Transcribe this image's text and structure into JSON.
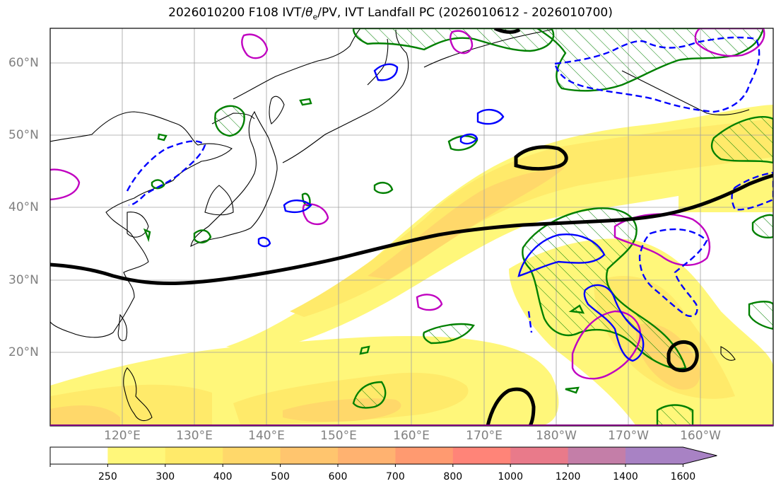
{
  "title": {
    "prefix": "2026010200 F108 IVT/",
    "theta": "θ",
    "theta_sub": "e",
    "suffix": "/PV, IVT Landfall PC (2026010612 - 2026010700)"
  },
  "lat_labels": [
    "60°N",
    "50°N",
    "40°N",
    "30°N",
    "20°N"
  ],
  "lon_labels": [
    "120°E",
    "130°E",
    "140°E",
    "150°E",
    "160°E",
    "170°E",
    "180°W",
    "170°W",
    "160°W"
  ],
  "colorbar": {
    "levels": [
      "250",
      "300",
      "400",
      "500",
      "600",
      "700",
      "800",
      "1000",
      "1200",
      "1400",
      "1600"
    ],
    "colors": [
      "#ffffff",
      "#fff77a",
      "#ffea6a",
      "#ffd86a",
      "#ffc56e",
      "#ffb270",
      "#ff9a70",
      "#ff8478",
      "#e97a8a",
      "#c47ea8",
      "#a882c4",
      "#a882c4"
    ],
    "extend": "max"
  },
  "contour_colors": {
    "pv_positive": "#008000",
    "theta_e_warm": "#c000c0",
    "theta_e_cold": "#0000ff",
    "landfall_pc": "#000000"
  }
}
